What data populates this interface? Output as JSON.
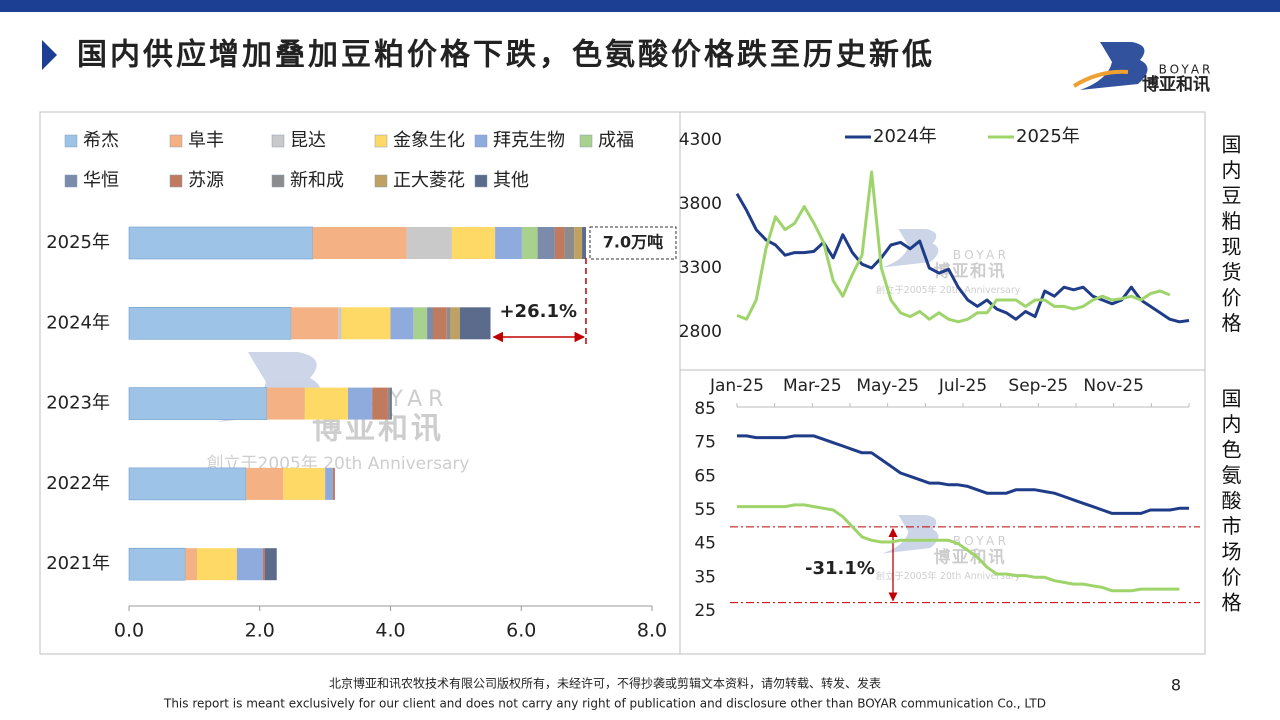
{
  "header": {
    "title": "国内供应增加叠加豆粕价格下跌，色氨酸价格跌至历史新低",
    "logo_brand": "BOYAR",
    "logo_name": "博亚和讯"
  },
  "watermark": {
    "brand": "BOYAR",
    "name": "博亚和讯",
    "slogan": "創立于2005年 20th Anniversary"
  },
  "chart_data": [
    {
      "type": "bar",
      "orientation": "horizontal",
      "stacked": true,
      "legend": "top",
      "categories": [
        "2025年",
        "2024年",
        "2023年",
        "2022年",
        "2021年"
      ],
      "series": [
        {
          "name": "希杰",
          "color": "#9dc3e6",
          "values": [
            2.81,
            2.48,
            2.11,
            1.79,
            0.86
          ]
        },
        {
          "name": "阜丰",
          "color": "#f4b183",
          "values": [
            1.44,
            0.72,
            0.58,
            0.57,
            0.18
          ]
        },
        {
          "name": "昆达",
          "color": "#c9c9c9",
          "values": [
            0.69,
            0.05,
            0,
            0,
            0
          ]
        },
        {
          "name": "金象生化",
          "color": "#ffd966",
          "values": [
            0.66,
            0.75,
            0.66,
            0.64,
            0.61
          ]
        },
        {
          "name": "拜克生物",
          "color": "#8faadc",
          "values": [
            0.41,
            0.35,
            0.37,
            0.12,
            0.4
          ]
        },
        {
          "name": "成福",
          "color": "#a9d18e",
          "values": [
            0.24,
            0.21,
            0,
            0,
            0
          ]
        },
        {
          "name": "华恒",
          "color": "#7b8bab",
          "values": [
            0.26,
            0.09,
            0,
            0,
            0
          ]
        },
        {
          "name": "苏源",
          "color": "#c07a5e",
          "values": [
            0.15,
            0.21,
            0.24,
            0.03,
            0.03
          ]
        },
        {
          "name": "新和成",
          "color": "#8c8c8c",
          "values": [
            0.15,
            0.06,
            0.04,
            0,
            0
          ]
        },
        {
          "name": "正大菱花",
          "color": "#bfa161",
          "values": [
            0.12,
            0.14,
            0,
            0,
            0
          ]
        },
        {
          "name": "其他",
          "color": "#5b6b8c",
          "values": [
            0.06,
            0.47,
            0.02,
            0,
            0.18
          ]
        }
      ],
      "xlim": [
        0,
        8
      ],
      "xticks": [
        {
          "value": 0,
          "label": "0.0"
        },
        {
          "value": 2,
          "label": "2.0"
        },
        {
          "value": 4,
          "label": "4.0"
        },
        {
          "value": 6,
          "label": "6.0"
        },
        {
          "value": 8,
          "label": "8.0"
        }
      ],
      "total_label": "7.0万吨",
      "growth_label": "+26.1%"
    },
    {
      "type": "line",
      "side_label": "国内豆粕现货价格",
      "legend": "top",
      "series": [
        {
          "name": "2024年",
          "color": "#1f3c88",
          "values": [
            3880,
            3750,
            3600,
            3520,
            3480,
            3400,
            3420,
            3420,
            3430,
            3500,
            3380,
            3560,
            3420,
            3330,
            3300,
            3380,
            3480,
            3500,
            3450,
            3510,
            3300,
            3260,
            3290,
            3150,
            3050,
            3000,
            3050,
            2980,
            2950,
            2900,
            2960,
            2920,
            3120,
            3080,
            3150,
            3130,
            3150,
            3080,
            3050,
            3020,
            3050,
            3150,
            3050,
            3000,
            2950,
            2900,
            2880,
            2890
          ]
        },
        {
          "name": "2025年",
          "color": "#9fd46b",
          "values": [
            2930,
            2900,
            3050,
            3450,
            3700,
            3600,
            3650,
            3780,
            3650,
            3500,
            3200,
            3080,
            3250,
            3400,
            4050,
            3300,
            3050,
            2950,
            2920,
            2960,
            2900,
            2950,
            2900,
            2880,
            2900,
            2950,
            2950,
            3050,
            3050,
            3050,
            3000,
            3050,
            3050,
            3000,
            3000,
            2980,
            3000,
            3050,
            3080,
            3050,
            3060,
            3080,
            3050,
            3100,
            3120,
            3090,
            null,
            null
          ]
        }
      ],
      "ylim": [
        2800,
        4300
      ],
      "yticks": [
        2800,
        3300,
        3800,
        4300
      ]
    },
    {
      "type": "line",
      "side_label": "国内色氨酸市场价格",
      "xtick_labels": [
        "Jan-25",
        "Mar-25",
        "May-25",
        "Jul-25",
        "Sep-25",
        "Nov-25"
      ],
      "series": [
        {
          "color": "#1f3c88",
          "values": [
            77,
            77,
            76.5,
            76.5,
            76.5,
            76.5,
            77,
            77,
            77,
            76,
            75,
            74,
            73,
            72,
            72,
            70,
            68,
            66,
            65,
            64,
            63,
            63,
            62.5,
            62.5,
            62,
            61,
            60,
            60,
            60,
            61,
            61,
            61,
            60.5,
            60,
            59,
            58,
            57,
            56,
            55,
            54,
            54,
            54,
            54,
            55,
            55,
            55,
            55.5,
            55.5
          ]
        },
        {
          "color": "#9fd46b",
          "values": [
            56,
            56,
            56,
            56,
            56,
            56,
            56.5,
            56.5,
            56,
            55.5,
            55,
            53,
            50,
            47,
            46,
            45.5,
            45.5,
            46,
            46,
            46,
            46,
            46,
            46,
            45,
            43,
            41,
            38,
            36,
            36,
            35.5,
            35.5,
            35,
            35,
            34,
            33.5,
            33,
            33,
            32.5,
            32,
            31,
            31,
            31,
            31.5,
            31.5,
            31.5,
            31.5,
            31.5,
            null
          ]
        }
      ],
      "ylim": [
        25,
        85
      ],
      "yticks": [
        25,
        35,
        45,
        55,
        65,
        75,
        85
      ],
      "reference_lines": [
        50,
        27.5
      ],
      "annotation": "-31.1%"
    }
  ],
  "footer": {
    "copyright_cn": "北京博亚和讯农牧技术有限公司版权所有，未经许可，不得抄袭或剪辑文本资料，请勿转载、转发、发表",
    "copyright_en": "This report is meant exclusively for our client and does not carry any right of publication and disclosure other than BOYAR communication Co., LTD",
    "page": "8"
  }
}
